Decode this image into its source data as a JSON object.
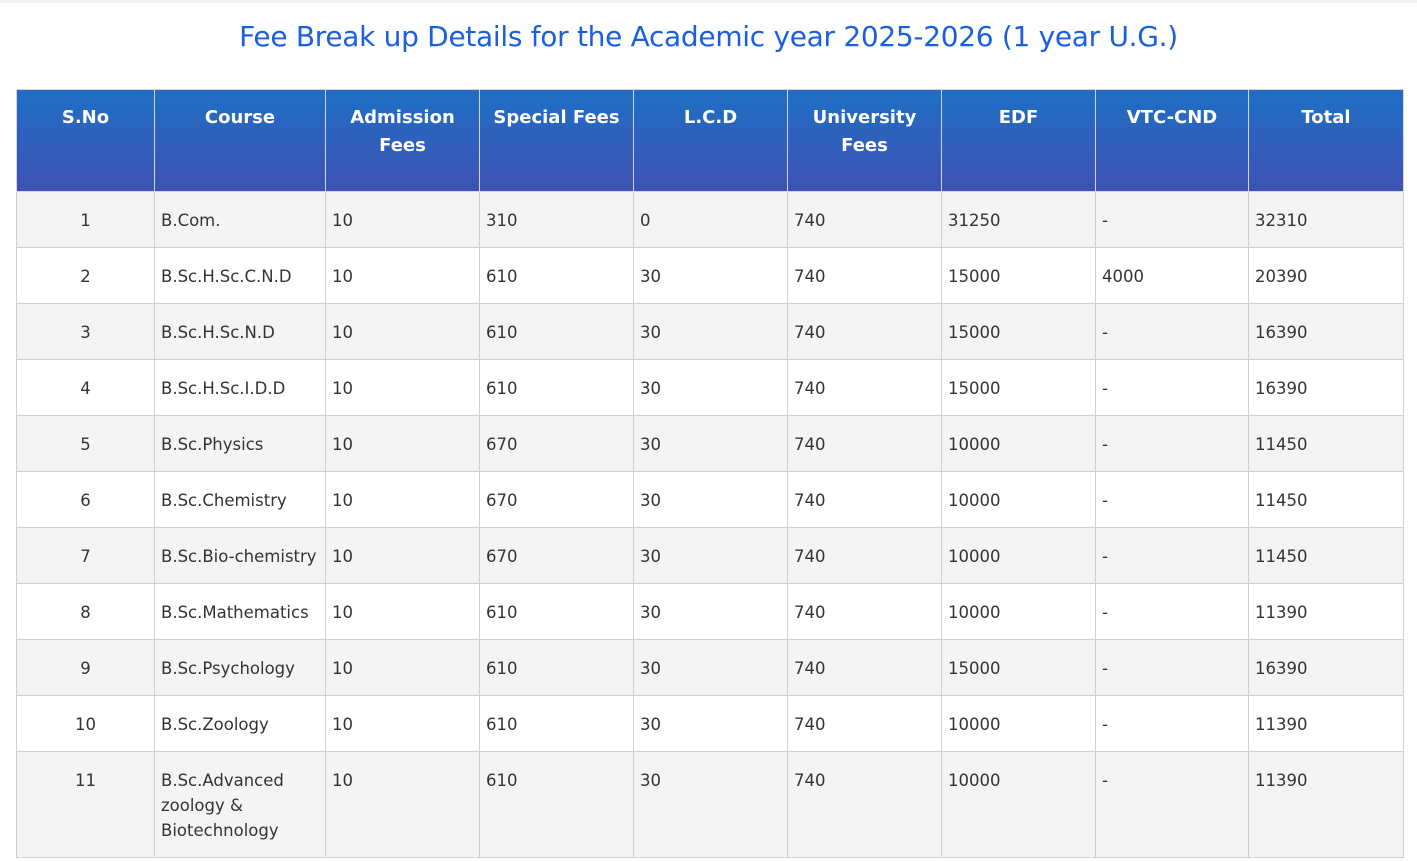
{
  "title": "Fee Break up Details for the Academic year 2025-2026 (1 year U.G.)",
  "headers": [
    "S.No",
    "Course",
    "Admission Fees",
    "Special Fees",
    "L.C.D",
    "University Fees",
    "EDF",
    "VTC-CND",
    "Total"
  ],
  "rows": [
    [
      "1",
      "B.Com.",
      "10",
      "310",
      "0",
      "740",
      "31250",
      "-",
      "32310"
    ],
    [
      "2",
      "B.Sc.H.Sc.C.N.D",
      "10",
      "610",
      "30",
      "740",
      "15000",
      "4000",
      "20390"
    ],
    [
      "3",
      "B.Sc.H.Sc.N.D",
      "10",
      "610",
      "30",
      "740",
      "15000",
      "-",
      "16390"
    ],
    [
      "4",
      "B.Sc.H.Sc.I.D.D",
      "10",
      "610",
      "30",
      "740",
      "15000",
      "-",
      "16390"
    ],
    [
      "5",
      "B.Sc.Physics",
      "10",
      "670",
      "30",
      "740",
      "10000",
      "-",
      "11450"
    ],
    [
      "6",
      "B.Sc.Chemistry",
      "10",
      "670",
      "30",
      "740",
      "10000",
      "-",
      "11450"
    ],
    [
      "7",
      "B.Sc.Bio-chemistry",
      "10",
      "670",
      "30",
      "740",
      "10000",
      "-",
      "11450"
    ],
    [
      "8",
      "B.Sc.Mathematics",
      "10",
      "610",
      "30",
      "740",
      "10000",
      "-",
      "11390"
    ],
    [
      "9",
      "B.Sc.Psychology",
      "10",
      "610",
      "30",
      "740",
      "15000",
      "-",
      "16390"
    ],
    [
      "10",
      "B.Sc.Zoology",
      "10",
      "610",
      "30",
      "740",
      "10000",
      "-",
      "11390"
    ],
    [
      "11",
      "B.Sc.Advanced zoology & Biotechnology",
      "10",
      "610",
      "30",
      "740",
      "10000",
      "-",
      "11390"
    ]
  ]
}
